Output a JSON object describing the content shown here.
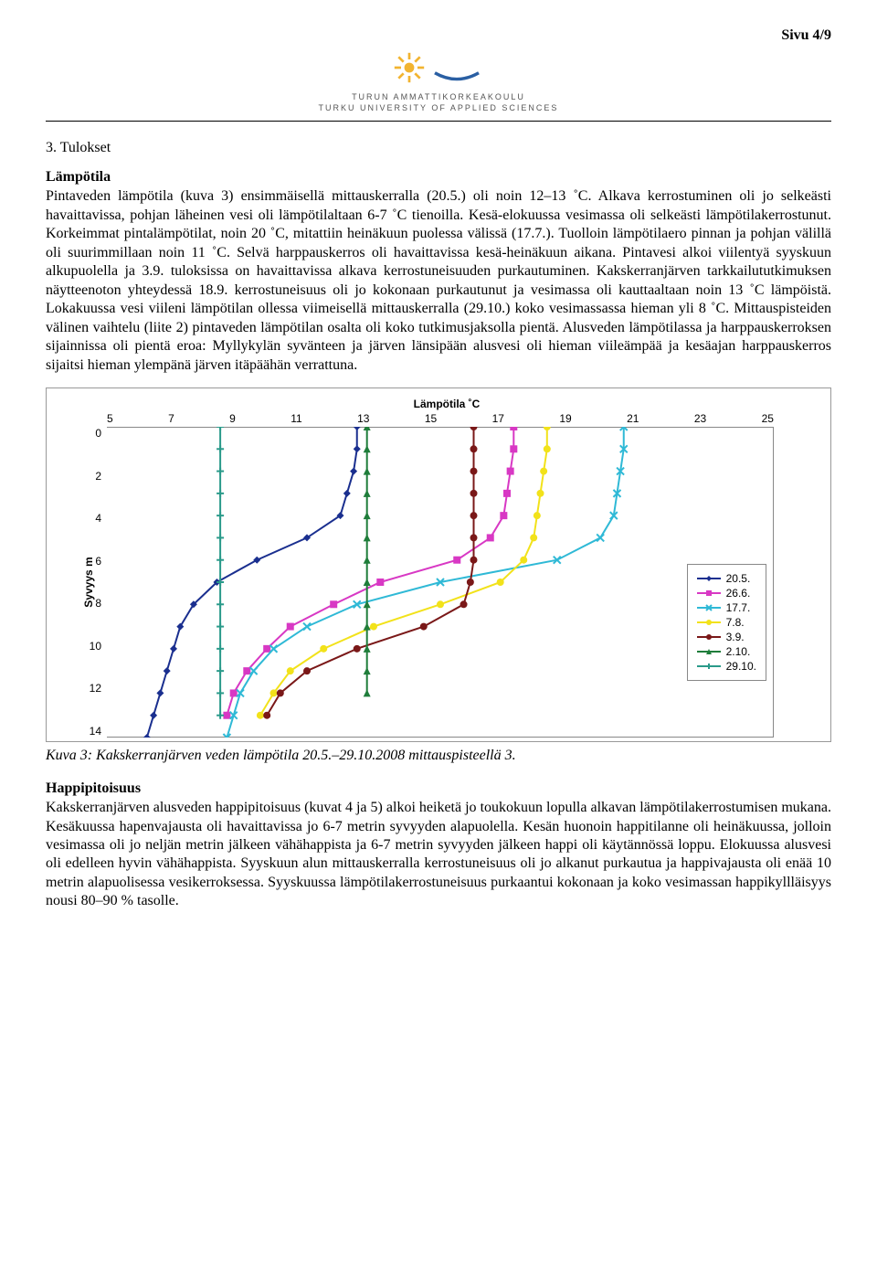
{
  "page_number": "Sivu 4/9",
  "logo": {
    "line1": "TURUN AMMATTIKORKEAKOULU",
    "line2": "TURKU UNIVERSITY OF APPLIED SCIENCES",
    "sun_color": "#f2b430",
    "arc_color": "#2a5fa3"
  },
  "section_title": "3. Tulokset",
  "sub1_title": "Lämpötila",
  "para1": "Pintaveden lämpötila (kuva 3) ensimmäisellä mittauskerralla (20.5.) oli noin 12–13 ˚C. Alkava kerrostuminen oli jo selkeästi havaittavissa, pohjan läheinen vesi oli lämpötilaltaan 6-7 ˚C tienoilla. Kesä-elokuussa vesimassa oli selkeästi lämpötilakerrostunut. Korkeimmat pintalämpötilat, noin 20 ˚C, mitattiin heinäkuun puolessa välissä (17.7.). Tuolloin lämpötilaero pinnan ja pohjan välillä oli suurimmillaan noin 11 ˚C. Selvä harppauskerros oli havaittavissa kesä-heinäkuun aikana. Pintavesi alkoi viilentyä syyskuun alkupuolella ja 3.9. tuloksissa on havaittavissa alkava kerrostuneisuuden purkautuminen. Kakskerranjärven tarkkailututkimuksen näytteenoton yhteydessä 18.9. kerrostuneisuus oli jo kokonaan purkautunut ja vesimassa oli kauttaaltaan noin 13 ˚C lämpöistä. Lokakuussa vesi viileni lämpötilan ollessa viimeisellä mittauskerralla (29.10.) koko vesimassassa hieman yli 8 ˚C. Mittauspisteiden välinen vaihtelu (liite 2) pintaveden lämpötilan osalta oli koko tutkimusjaksolla pientä. Alusveden lämpötilassa ja harppauskerroksen sijainnissa oli pientä eroa: Myllykylän syvänteen ja järven länsipään alusvesi oli hieman viileämpää ja kesäajan harppauskerros sijaitsi hieman ylempänä järven itäpäähän verrattuna.",
  "chart": {
    "type": "line",
    "title": "Lämpötila ˚C",
    "xlabel": "",
    "ylabel": "Syvyys m",
    "xlim": [
      5,
      25
    ],
    "ylim": [
      0,
      14
    ],
    "xtick_values": [
      5,
      7,
      9,
      11,
      13,
      15,
      17,
      19,
      21,
      23,
      25
    ],
    "ytick_values": [
      0,
      2,
      4,
      6,
      8,
      10,
      12,
      14
    ],
    "background_color": "#ffffff",
    "border_color": "#888888",
    "line_width": 2,
    "marker_size": 4,
    "series": [
      {
        "label": "20.5.",
        "color": "#1a2f8f",
        "marker": "diamond",
        "points": [
          [
            12.5,
            0
          ],
          [
            12.5,
            1
          ],
          [
            12.4,
            2
          ],
          [
            12.2,
            3
          ],
          [
            12.0,
            4
          ],
          [
            11.0,
            5
          ],
          [
            9.5,
            6
          ],
          [
            8.3,
            7
          ],
          [
            7.6,
            8
          ],
          [
            7.2,
            9
          ],
          [
            7.0,
            10
          ],
          [
            6.8,
            11
          ],
          [
            6.6,
            12
          ],
          [
            6.4,
            13
          ],
          [
            6.2,
            14
          ]
        ]
      },
      {
        "label": "26.6.",
        "color": "#d838c4",
        "marker": "square",
        "points": [
          [
            17.2,
            0
          ],
          [
            17.2,
            1
          ],
          [
            17.1,
            2
          ],
          [
            17.0,
            3
          ],
          [
            16.9,
            4
          ],
          [
            16.5,
            5
          ],
          [
            15.5,
            6
          ],
          [
            13.2,
            7
          ],
          [
            11.8,
            8
          ],
          [
            10.5,
            9
          ],
          [
            9.8,
            10
          ],
          [
            9.2,
            11
          ],
          [
            8.8,
            12
          ],
          [
            8.6,
            13
          ]
        ]
      },
      {
        "label": "17.7.",
        "color": "#2fb9d6",
        "marker": "x",
        "points": [
          [
            20.5,
            0
          ],
          [
            20.5,
            1
          ],
          [
            20.4,
            2
          ],
          [
            20.3,
            3
          ],
          [
            20.2,
            4
          ],
          [
            19.8,
            5
          ],
          [
            18.5,
            6
          ],
          [
            15.0,
            7
          ],
          [
            12.5,
            8
          ],
          [
            11.0,
            9
          ],
          [
            10.0,
            10
          ],
          [
            9.4,
            11
          ],
          [
            9.0,
            12
          ],
          [
            8.8,
            13
          ],
          [
            8.6,
            14
          ]
        ]
      },
      {
        "label": "7.8.",
        "color": "#f2e21a",
        "marker": "circle",
        "points": [
          [
            18.2,
            0
          ],
          [
            18.2,
            1
          ],
          [
            18.1,
            2
          ],
          [
            18.0,
            3
          ],
          [
            17.9,
            4
          ],
          [
            17.8,
            5
          ],
          [
            17.5,
            6
          ],
          [
            16.8,
            7
          ],
          [
            15.0,
            8
          ],
          [
            13.0,
            9
          ],
          [
            11.5,
            10
          ],
          [
            10.5,
            11
          ],
          [
            10.0,
            12
          ],
          [
            9.6,
            13
          ]
        ]
      },
      {
        "label": "3.9.",
        "color": "#7a1818",
        "marker": "dot",
        "points": [
          [
            16.0,
            0
          ],
          [
            16.0,
            1
          ],
          [
            16.0,
            2
          ],
          [
            16.0,
            3
          ],
          [
            16.0,
            4
          ],
          [
            16.0,
            5
          ],
          [
            16.0,
            6
          ],
          [
            15.9,
            7
          ],
          [
            15.7,
            8
          ],
          [
            14.5,
            9
          ],
          [
            12.5,
            10
          ],
          [
            11.0,
            11
          ],
          [
            10.2,
            12
          ],
          [
            9.8,
            13
          ]
        ]
      },
      {
        "label": "2.10.",
        "color": "#1f7d3a",
        "marker": "triangle",
        "points": [
          [
            12.8,
            0
          ],
          [
            12.8,
            1
          ],
          [
            12.8,
            2
          ],
          [
            12.8,
            3
          ],
          [
            12.8,
            4
          ],
          [
            12.8,
            5
          ],
          [
            12.8,
            6
          ],
          [
            12.8,
            7
          ],
          [
            12.8,
            8
          ],
          [
            12.8,
            9
          ],
          [
            12.8,
            10
          ],
          [
            12.8,
            11
          ],
          [
            12.8,
            12
          ]
        ]
      },
      {
        "label": "29.10.",
        "color": "#2a9a8a",
        "marker": "plus",
        "points": [
          [
            8.4,
            0
          ],
          [
            8.4,
            1
          ],
          [
            8.4,
            2
          ],
          [
            8.4,
            3
          ],
          [
            8.4,
            4
          ],
          [
            8.4,
            5
          ],
          [
            8.4,
            6
          ],
          [
            8.4,
            7
          ],
          [
            8.4,
            8
          ],
          [
            8.4,
            9
          ],
          [
            8.4,
            10
          ],
          [
            8.4,
            11
          ],
          [
            8.4,
            12
          ],
          [
            8.4,
            13
          ]
        ]
      }
    ]
  },
  "caption": "Kuva 3: Kakskerranjärven veden lämpötila 20.5.–29.10.2008 mittauspisteellä 3.",
  "sub2_title": "Happipitoisuus",
  "para2": "Kakskerranjärven alusveden happipitoisuus (kuvat 4 ja 5) alkoi heiketä jo toukokuun lopulla alkavan lämpötilakerrostumisen mukana. Kesäkuussa hapenvajausta oli havaittavissa jo 6-7 metrin syvyyden alapuolella. Kesän huonoin happitilanne oli heinäkuussa, jolloin vesimassa oli jo neljän metrin jälkeen vähähappista ja 6-7 metrin syvyyden jälkeen happi oli käytännössä loppu. Elokuussa alusvesi oli edelleen hyvin vähähappista. Syyskuun alun mittauskerralla kerrostuneisuus oli jo alkanut purkautua ja happivajausta oli enää 10 metrin alapuolisessa vesikerroksessa. Syyskuussa lämpötilakerrostuneisuus purkaantui kokonaan ja koko vesimassan happikyllläisyys nousi 80–90 % tasolle."
}
